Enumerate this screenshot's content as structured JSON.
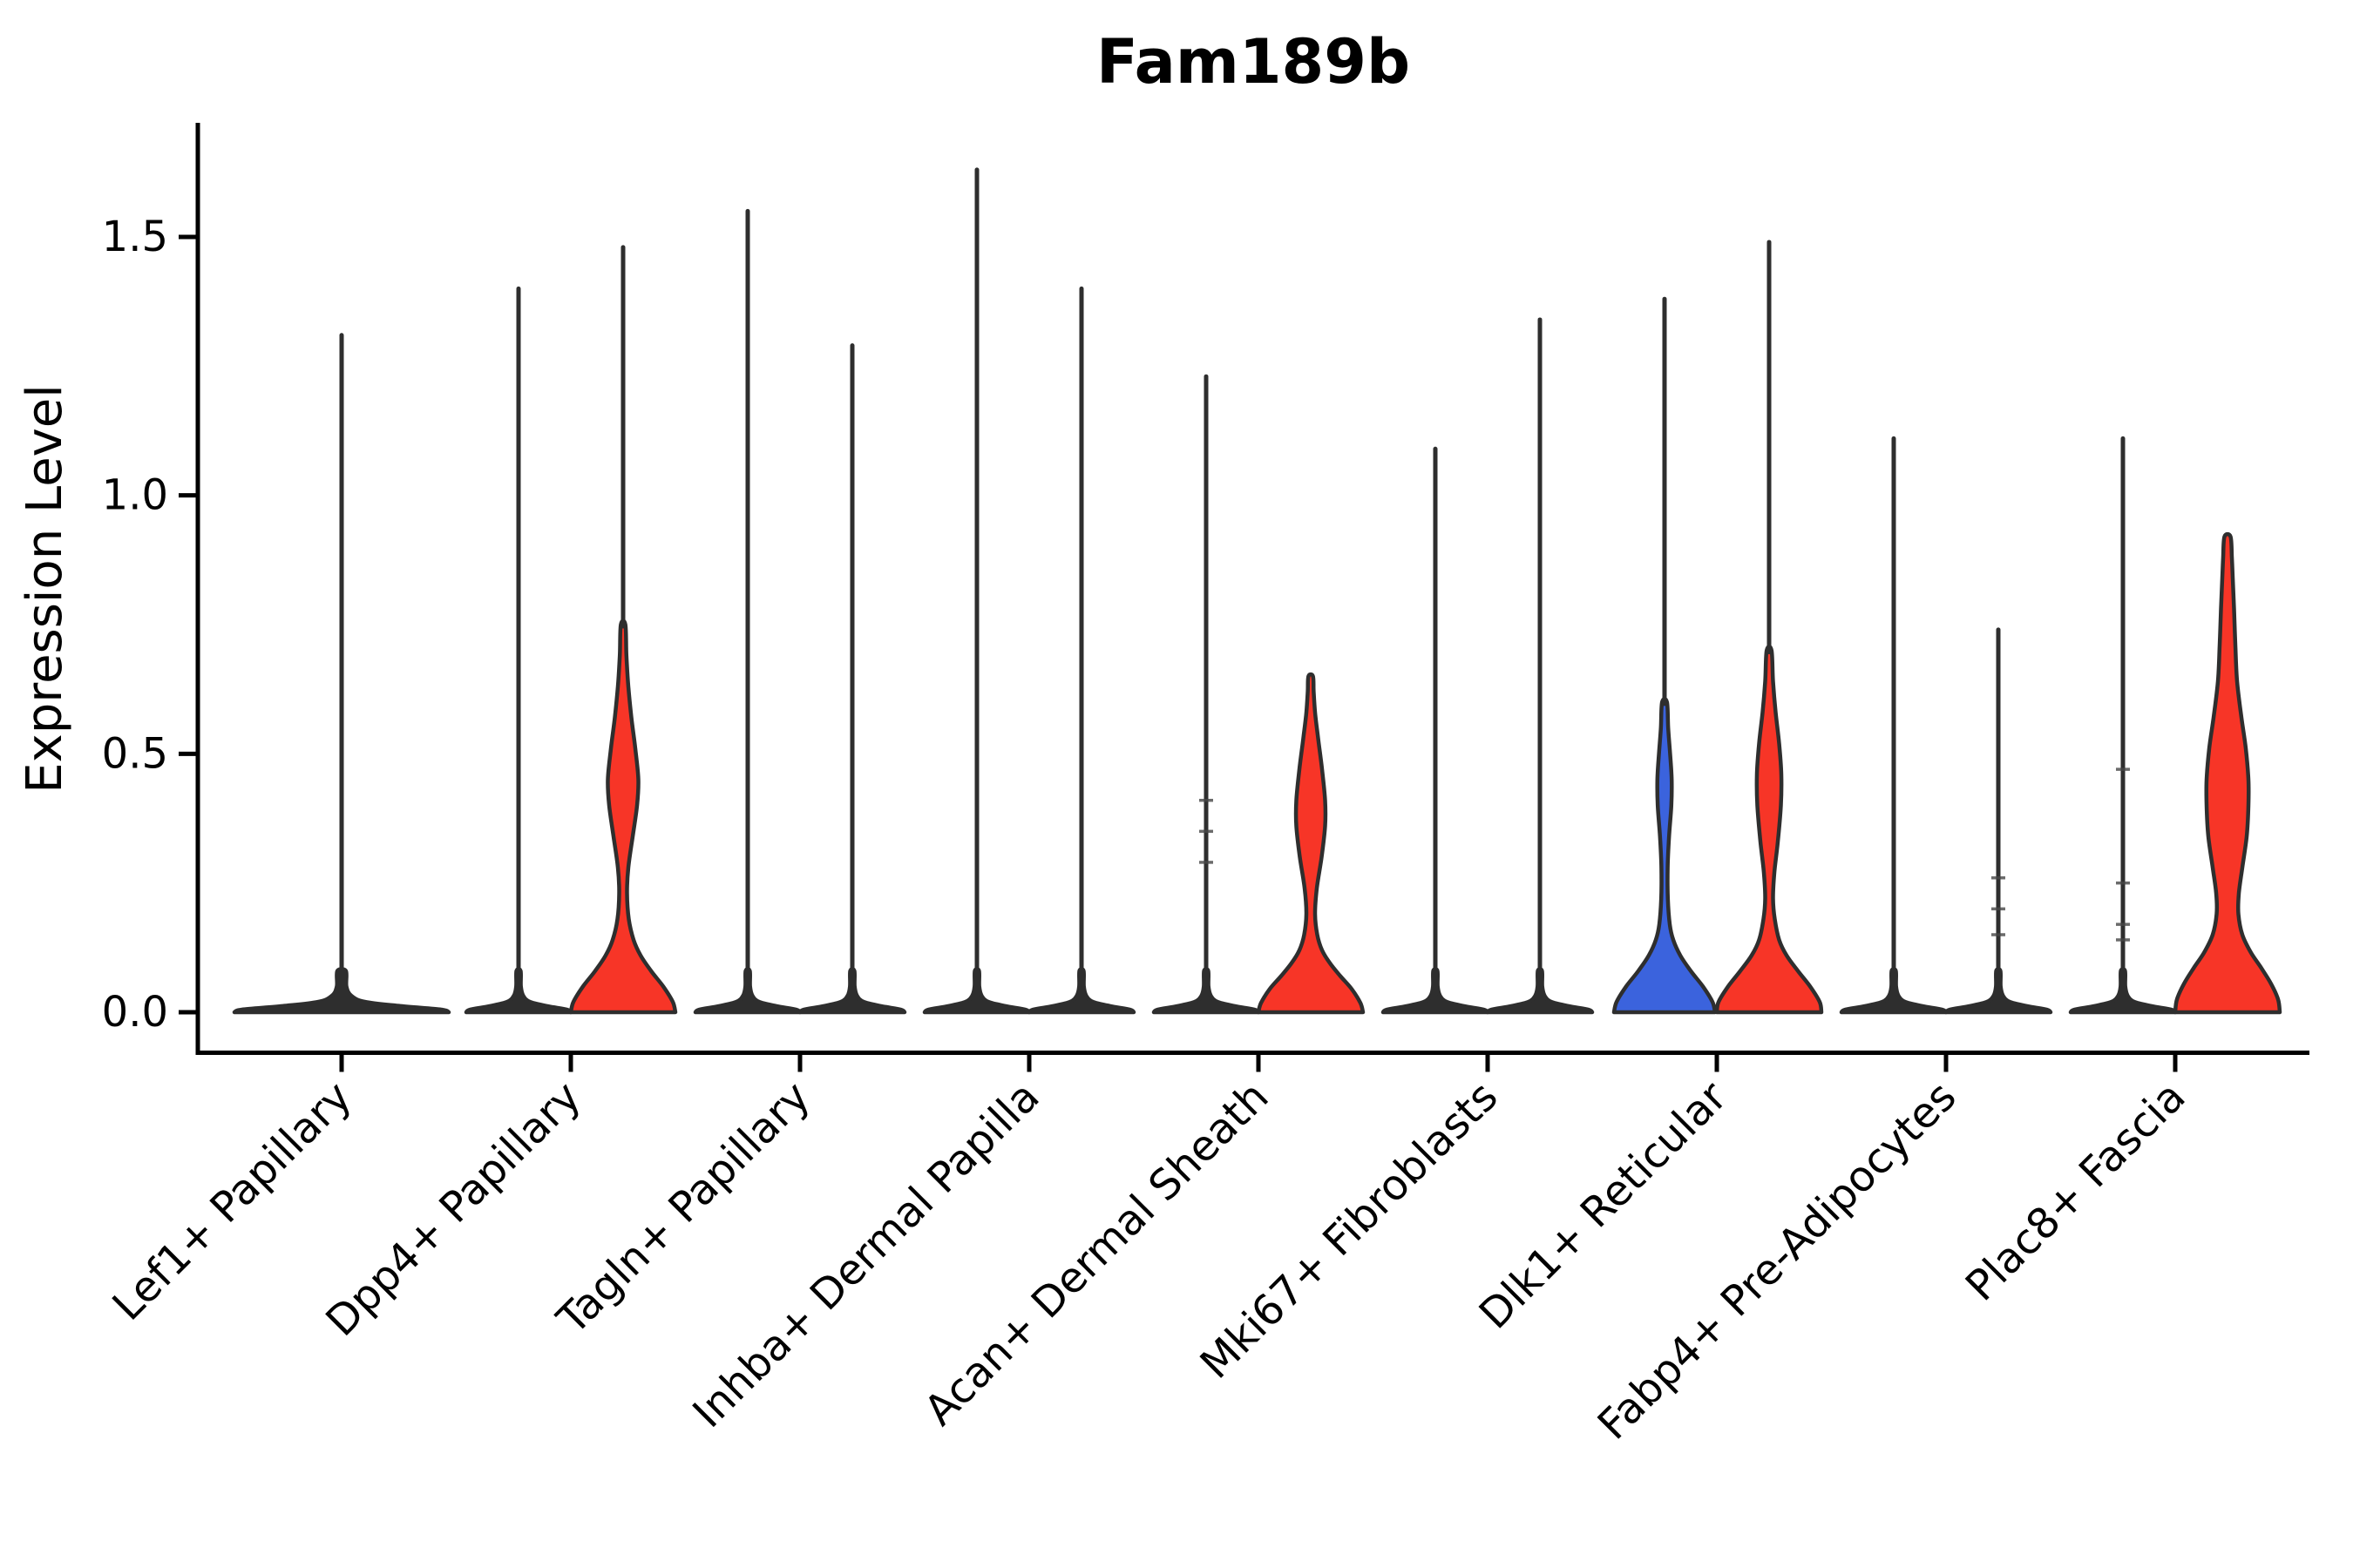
{
  "colors": {
    "red": "#f73527",
    "blue": "#3b63dd",
    "outline": "#2e2e2e",
    "axis": "#000000",
    "background": "#ffffff"
  },
  "chart_data": {
    "type": "violin",
    "title": "Fam189b",
    "ylabel": "Expression Level",
    "xlabel": "",
    "ylim": [
      0,
      1.72
    ],
    "grid": false,
    "legend": "none",
    "yticks": [
      0.0,
      0.5,
      1.0,
      1.5
    ],
    "ytick_labels": [
      "0.0",
      "0.5",
      "1.0",
      "1.5"
    ],
    "flat_profile": [
      [
        0,
        1.0
      ],
      [
        0.005,
        0.93
      ],
      [
        0.012,
        0.55
      ],
      [
        0.02,
        0.22
      ],
      [
        0.032,
        0.09
      ],
      [
        0.05,
        0.045
      ],
      [
        0.08,
        0.04
      ]
    ],
    "categories": [
      {
        "label": "Lef1+ Papillary",
        "violins": [
          {
            "side": "full",
            "fill": "dark",
            "shape": "flat",
            "hw": 123,
            "spike_top": 1.31,
            "marks": []
          }
        ]
      },
      {
        "label": "Dpp4+ Papillary",
        "violins": [
          {
            "side": "left",
            "fill": "dark",
            "shape": "flat",
            "hw": 60,
            "spike_top": 1.4,
            "marks": []
          },
          {
            "side": "right",
            "fill": "red",
            "shape": "profile",
            "spike_top": 1.48,
            "marks": [],
            "profile": [
              [
                0,
                60
              ],
              [
                0.02,
                57
              ],
              [
                0.05,
                46
              ],
              [
                0.08,
                32
              ],
              [
                0.11,
                20
              ],
              [
                0.14,
                12
              ],
              [
                0.18,
                6.5
              ],
              [
                0.23,
                4.5
              ],
              [
                0.28,
                6
              ],
              [
                0.34,
                11
              ],
              [
                0.4,
                16
              ],
              [
                0.45,
                17.5
              ],
              [
                0.51,
                14
              ],
              [
                0.57,
                9.5
              ],
              [
                0.63,
                6
              ],
              [
                0.69,
                3.8
              ],
              [
                0.75,
                2.6
              ]
            ]
          }
        ]
      },
      {
        "label": "Tagln+ Papillary",
        "violins": [
          {
            "side": "left",
            "fill": "dark",
            "shape": "flat",
            "hw": 60,
            "spike_top": 1.55,
            "marks": []
          },
          {
            "side": "right",
            "fill": "dark",
            "shape": "flat",
            "hw": 60,
            "spike_top": 1.29,
            "marks": []
          }
        ]
      },
      {
        "label": "Inhba+ Dermal Papilla",
        "violins": [
          {
            "side": "left",
            "fill": "dark",
            "shape": "flat",
            "hw": 60,
            "spike_top": 1.63,
            "marks": []
          },
          {
            "side": "right",
            "fill": "dark",
            "shape": "flat",
            "hw": 60,
            "spike_top": 1.4,
            "marks": []
          }
        ]
      },
      {
        "label": "Acan+ Dermal Sheath",
        "violins": [
          {
            "side": "left",
            "fill": "dark",
            "shape": "flat",
            "hw": 60,
            "spike_top": 1.23,
            "marks": [
              0.29,
              0.35,
              0.41
            ]
          },
          {
            "side": "right",
            "fill": "red",
            "shape": "profile",
            "spike_top": null,
            "marks": [],
            "profile": [
              [
                0,
                60
              ],
              [
                0.018,
                57
              ],
              [
                0.045,
                47
              ],
              [
                0.07,
                34
              ],
              [
                0.095,
                22
              ],
              [
                0.12,
                13
              ],
              [
                0.15,
                7.5
              ],
              [
                0.19,
                5
              ],
              [
                0.24,
                7
              ],
              [
                0.3,
                12.5
              ],
              [
                0.36,
                16.5
              ],
              [
                0.41,
                16.5
              ],
              [
                0.47,
                13
              ],
              [
                0.53,
                8.5
              ],
              [
                0.58,
                5
              ],
              [
                0.62,
                3.4
              ],
              [
                0.65,
                2.6
              ]
            ]
          }
        ]
      },
      {
        "label": "Mki67+ Fibroblasts",
        "violins": [
          {
            "side": "left",
            "fill": "dark",
            "shape": "flat",
            "hw": 60,
            "spike_top": 1.09,
            "marks": []
          },
          {
            "side": "right",
            "fill": "dark",
            "shape": "flat",
            "hw": 60,
            "spike_top": 1.34,
            "marks": []
          }
        ]
      },
      {
        "label": "Dlk1+ Reticular",
        "violins": [
          {
            "side": "left",
            "fill": "blue",
            "shape": "profile",
            "spike_top": 1.38,
            "marks": [],
            "profile": [
              [
                0,
                58
              ],
              [
                0.02,
                55
              ],
              [
                0.05,
                44
              ],
              [
                0.08,
                30
              ],
              [
                0.11,
                18
              ],
              [
                0.14,
                10
              ],
              [
                0.17,
                6
              ],
              [
                0.22,
                3.8
              ],
              [
                0.28,
                3.6
              ],
              [
                0.34,
                5.2
              ],
              [
                0.4,
                7.8
              ],
              [
                0.45,
                8.2
              ],
              [
                0.5,
                6.4
              ],
              [
                0.55,
                4.2
              ],
              [
                0.6,
                2.8
              ]
            ]
          },
          {
            "side": "right",
            "fill": "red",
            "shape": "profile",
            "spike_top": 1.49,
            "marks": [],
            "profile": [
              [
                0,
                60
              ],
              [
                0.02,
                58
              ],
              [
                0.05,
                47
              ],
              [
                0.08,
                33
              ],
              [
                0.11,
                20
              ],
              [
                0.14,
                11.5
              ],
              [
                0.18,
                6.5
              ],
              [
                0.22,
                4.5
              ],
              [
                0.27,
                6
              ],
              [
                0.33,
                10
              ],
              [
                0.4,
                13.5
              ],
              [
                0.46,
                14
              ],
              [
                0.52,
                11.5
              ],
              [
                0.58,
                7.5
              ],
              [
                0.64,
                4.5
              ],
              [
                0.7,
                2.8
              ]
            ]
          }
        ]
      },
      {
        "label": "Fabp4+ Pre-Adipocytes",
        "violins": [
          {
            "side": "left",
            "fill": "dark",
            "shape": "flat",
            "hw": 60,
            "spike_top": 1.11,
            "marks": []
          },
          {
            "side": "right",
            "fill": "dark",
            "shape": "flat",
            "hw": 60,
            "spike_top": 0.74,
            "marks": [
              0.15,
              0.2,
              0.26
            ]
          }
        ]
      },
      {
        "label": "Plac8+ Fascia",
        "violins": [
          {
            "side": "left",
            "fill": "dark",
            "shape": "flat",
            "hw": 60,
            "spike_top": 1.11,
            "marks": [
              0.14,
              0.17,
              0.25,
              0.47
            ]
          },
          {
            "side": "right",
            "fill": "red",
            "shape": "profile",
            "spike_top": null,
            "marks": [],
            "profile": [
              [
                0,
                60
              ],
              [
                0.025,
                58
              ],
              [
                0.055,
                50
              ],
              [
                0.085,
                39
              ],
              [
                0.115,
                27
              ],
              [
                0.15,
                17
              ],
              [
                0.19,
                12.5
              ],
              [
                0.23,
                13
              ],
              [
                0.28,
                17
              ],
              [
                0.34,
                22
              ],
              [
                0.4,
                24
              ],
              [
                0.45,
                24
              ],
              [
                0.51,
                21
              ],
              [
                0.57,
                16
              ],
              [
                0.64,
                11
              ],
              [
                0.71,
                9
              ],
              [
                0.78,
                7.5
              ],
              [
                0.84,
                6
              ],
              [
                0.88,
                5
              ],
              [
                0.92,
                3.5
              ]
            ]
          }
        ]
      }
    ]
  }
}
